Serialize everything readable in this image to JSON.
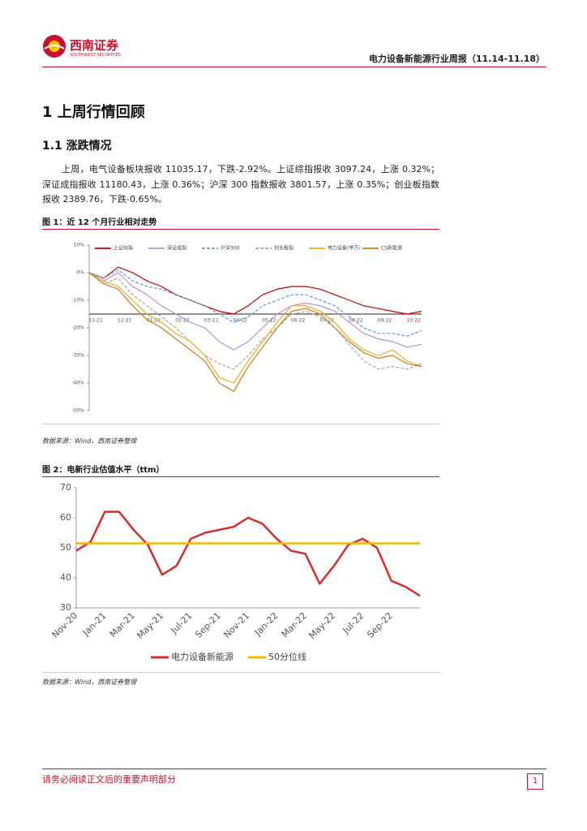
{
  "header": {
    "logo_cn": "西南证券",
    "logo_en": "SOUTHWEST SECURITIES",
    "title": "电力设备新能源行业周报（11.14-11.18）"
  },
  "section": {
    "heading": "1 上周行情回顾",
    "subheading": "1.1 涨跌情况",
    "paragraph": "上周，电气设备板块报收 11035.17，下跌-2.92%。上证综指报收 3097.24，上涨 0.32%；深证成指报收 11180.43，上涨 0.36%；沪深 300 指数报收 3801.57，上涨 0.35%；创业板指数报收 2389.76，下跌-0.65%。"
  },
  "figure1": {
    "caption": "图 1：近 12 个月行业相对走势",
    "source": "数据来源：Wind，西南证券整理"
  },
  "figure2": {
    "caption": "图 2：电新行业估值水平（ttm）",
    "source": "数据来源：Wind，西南证券整理"
  },
  "footer": {
    "note": "请务必阅读正文后的重要声明部分",
    "page": "1"
  },
  "chart_data": [
    {
      "type": "line",
      "legend": "top",
      "x_axis_at": -15,
      "categories": [
        "11-21",
        null,
        "12-21",
        null,
        "01-22",
        null,
        "02-22",
        null,
        "03-22",
        null,
        "04-22",
        null,
        "05-22",
        null,
        "06-22",
        null,
        "07-22",
        null,
        "08-22",
        null,
        "09-22",
        null,
        "10-22",
        null
      ],
      "ylim": [
        -50,
        10
      ],
      "yticks": [
        {
          "value": 10,
          "label": "10%"
        },
        {
          "value": 0,
          "label": "0%"
        },
        {
          "value": -10,
          "label": "-10%"
        },
        {
          "value": -20,
          "label": "-20%"
        },
        {
          "value": -30,
          "label": "-30%"
        },
        {
          "value": -40,
          "label": "-40%"
        },
        {
          "value": -50,
          "label": "-50%"
        }
      ],
      "series": [
        {
          "name": "上证综指",
          "color": "#c00000",
          "dashed": false,
          "values": [
            0,
            -2,
            2,
            0,
            -3,
            -5,
            -8,
            -10,
            -12,
            -14,
            -15,
            -12,
            -8,
            -6,
            -5,
            -5,
            -6,
            -8,
            -10,
            -12,
            -13,
            -14,
            -15,
            -14
          ]
        },
        {
          "name": "深证成指",
          "color": "#b48ee2",
          "dashed": false,
          "values": [
            0,
            -3,
            0,
            -5,
            -8,
            -12,
            -15,
            -18,
            -20,
            -25,
            -28,
            -25,
            -20,
            -15,
            -12,
            -11,
            -12,
            -14,
            -18,
            -22,
            -24,
            -25,
            -27,
            -26
          ]
        },
        {
          "name": "沪深300",
          "color": "#5b9bd5",
          "dashed": true,
          "values": [
            0,
            -2,
            1,
            -3,
            -5,
            -6,
            -8,
            -10,
            -12,
            -15,
            -18,
            -16,
            -12,
            -10,
            -8,
            -8,
            -10,
            -12,
            -16,
            -20,
            -22,
            -22,
            -23,
            -21
          ]
        },
        {
          "name": "创业板指",
          "color": "#a6a6a6",
          "dashed": true,
          "values": [
            0,
            -4,
            -2,
            -8,
            -12,
            -16,
            -20,
            -25,
            -30,
            -33,
            -35,
            -30,
            -24,
            -20,
            -15,
            -14,
            -16,
            -20,
            -26,
            -32,
            -35,
            -34,
            -35,
            -33
          ]
        },
        {
          "name": "电力设备(申万)",
          "color": "#f2a81d",
          "dashed": false,
          "values": [
            0,
            -3,
            -5,
            -10,
            -15,
            -18,
            -22,
            -25,
            -30,
            -38,
            -40,
            -32,
            -25,
            -18,
            -12,
            -12,
            -14,
            -18,
            -24,
            -28,
            -30,
            -28,
            -32,
            -34
          ]
        },
        {
          "name": "CS新能源",
          "color": "#c97a1c",
          "dashed": false,
          "values": [
            0,
            -4,
            -6,
            -12,
            -17,
            -20,
            -24,
            -28,
            -32,
            -40,
            -43,
            -34,
            -27,
            -20,
            -14,
            -13,
            -15,
            -20,
            -25,
            -29,
            -31,
            -30,
            -33,
            -34
          ]
        }
      ]
    },
    {
      "type": "line",
      "legend": "bottom",
      "categories": [
        "Nov-20",
        null,
        "Jan-21",
        null,
        "Mar-21",
        null,
        "May-21",
        null,
        "Jul-21",
        null,
        "Sep-21",
        null,
        "Nov-21",
        null,
        "Jan-22",
        null,
        "Mar-22",
        null,
        "May-22",
        null,
        "Jul-22",
        null,
        "Sep-22",
        null,
        null
      ],
      "ylim": [
        30,
        70
      ],
      "yticks": [
        30,
        40,
        50,
        60,
        70
      ],
      "series": [
        {
          "name": "电力设备新能源",
          "color": "#d62c2c",
          "values": [
            49,
            52,
            62,
            62,
            56,
            51,
            41,
            44,
            53,
            55,
            56,
            57,
            60,
            58,
            53,
            49,
            48,
            38,
            44,
            51,
            53,
            50,
            39,
            37,
            34
          ]
        },
        {
          "name": "50分位线",
          "color": "#f5b800",
          "values": [
            51.5,
            51.5,
            51.5,
            51.5,
            51.5,
            51.5,
            51.5,
            51.5,
            51.5,
            51.5,
            51.5,
            51.5,
            51.5,
            51.5,
            51.5,
            51.5,
            51.5,
            51.5,
            51.5,
            51.5,
            51.5,
            51.5,
            51.5,
            51.5,
            51.5
          ]
        }
      ]
    }
  ]
}
